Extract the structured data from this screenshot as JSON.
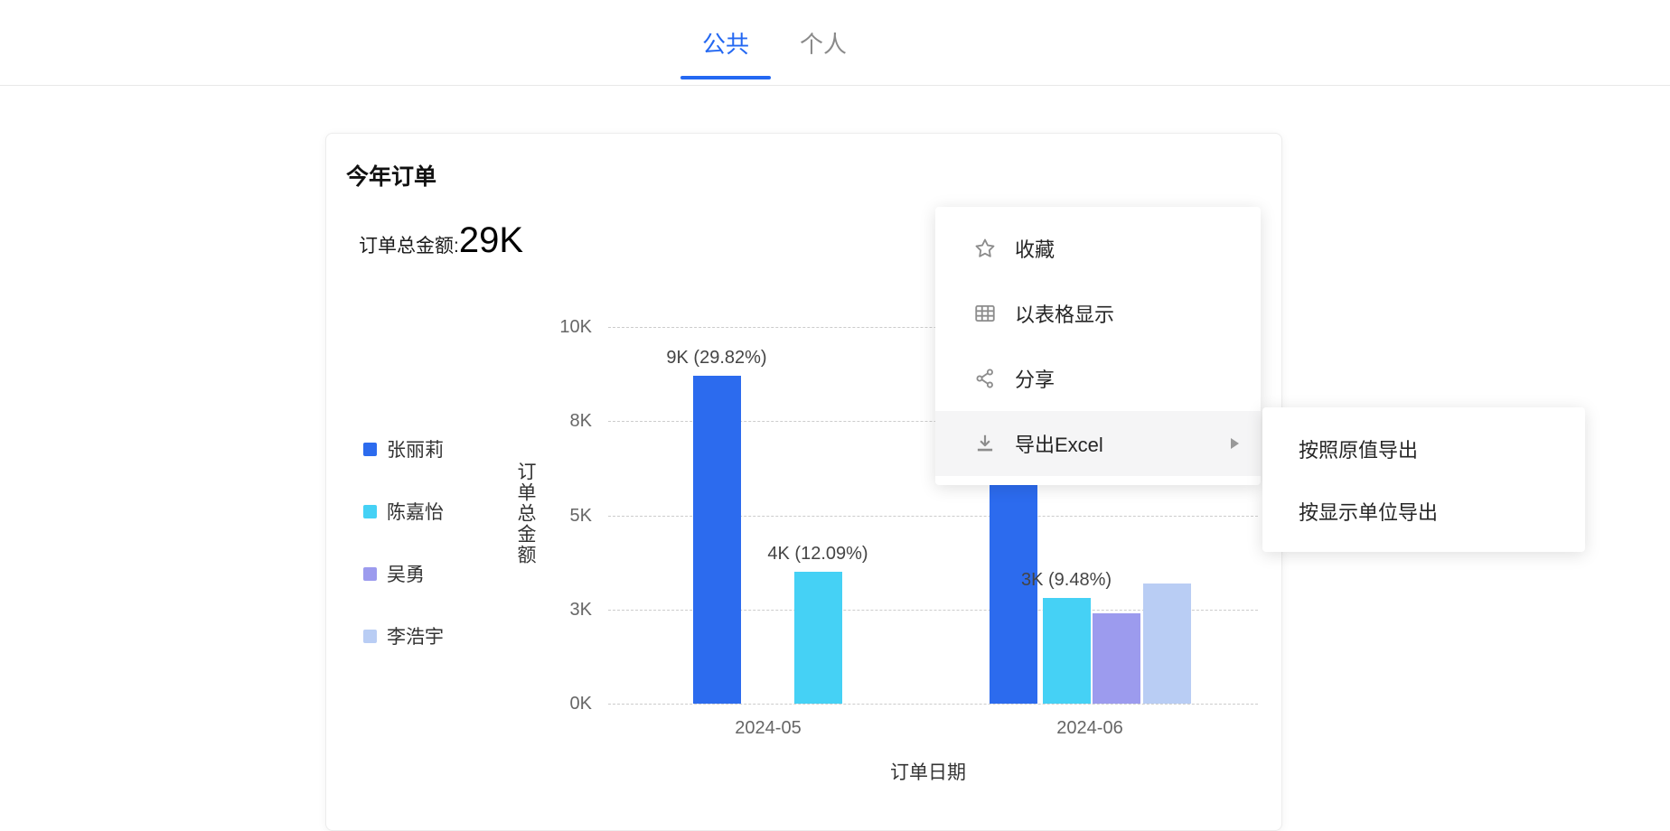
{
  "tabs": [
    {
      "label": "公共",
      "active": true
    },
    {
      "label": "个人",
      "active": false
    }
  ],
  "card": {
    "title": "今年订单",
    "total_label": "订单总金额:",
    "total_value": "29K"
  },
  "chart_data": {
    "type": "bar",
    "title": "今年订单",
    "xlabel": "订单日期",
    "ylabel": "订单总金额",
    "categories": [
      "2024-05",
      "2024-06"
    ],
    "series": [
      {
        "name": "张丽莉",
        "color": "#2C6BEE",
        "values": [
          8.7,
          6.5
        ],
        "labels": [
          "9K (29.82%)",
          ""
        ]
      },
      {
        "name": "陈嘉怡",
        "color": "#45D1F5",
        "values": [
          3.5,
          2.8
        ],
        "labels": [
          "4K (12.09%)",
          "3K (9.48%)"
        ]
      },
      {
        "name": "吴勇",
        "color": "#9C9BEE",
        "values": [
          null,
          2.4
        ],
        "labels": [
          "",
          ""
        ]
      },
      {
        "name": "李浩宇",
        "color": "#B9CDF4",
        "values": [
          null,
          3.2
        ],
        "labels": [
          "",
          ""
        ]
      }
    ],
    "y_ticks": [
      "10K",
      "8K",
      "5K",
      "3K",
      "0K"
    ],
    "ylim": [
      0,
      10
    ],
    "unit": "K",
    "legend_position": "left",
    "grid": "horizontal-dashed"
  },
  "menu": {
    "items": [
      {
        "label": "收藏",
        "icon": "star-icon",
        "has_submenu": false,
        "highlighted": false
      },
      {
        "label": "以表格显示",
        "icon": "table-icon",
        "has_submenu": false,
        "highlighted": false
      },
      {
        "label": "分享",
        "icon": "share-icon",
        "has_submenu": false,
        "highlighted": false
      },
      {
        "label": "导出Excel",
        "icon": "download-icon",
        "has_submenu": true,
        "highlighted": true
      }
    ],
    "submenu": [
      {
        "label": "按照原值导出"
      },
      {
        "label": "按显示单位导出"
      }
    ]
  },
  "colors": {
    "accent": "#2468F2",
    "menu_icon": "#8c8c8c",
    "gridline": "#cccccc",
    "tick_text": "#666666"
  }
}
